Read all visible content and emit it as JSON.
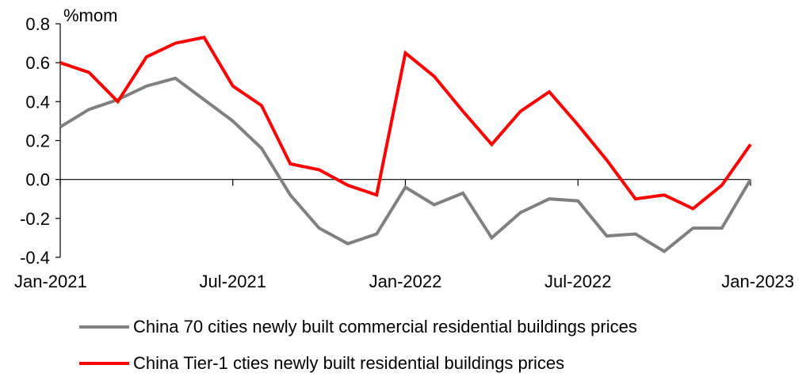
{
  "chart_data": {
    "type": "line",
    "ylabel": "%mom",
    "ylim": [
      -0.4,
      0.8
    ],
    "yticks": [
      0.8,
      0.6,
      0.4,
      0.2,
      0.0,
      -0.2,
      -0.4
    ],
    "ytick_labels": [
      "0.8",
      "0.6",
      "0.4",
      "0.2",
      "0.0",
      "-0.2",
      "-0.4"
    ],
    "x": [
      "Jan-2021",
      "Feb-2021",
      "Mar-2021",
      "Apr-2021",
      "May-2021",
      "Jun-2021",
      "Jul-2021",
      "Aug-2021",
      "Sep-2021",
      "Oct-2021",
      "Nov-2021",
      "Dec-2021",
      "Jan-2022",
      "Feb-2022",
      "Mar-2022",
      "Apr-2022",
      "May-2022",
      "Jun-2022",
      "Jul-2022",
      "Aug-2022",
      "Sep-2022",
      "Oct-2022",
      "Nov-2022",
      "Dec-2022",
      "Jan-2023"
    ],
    "xtick_labels": [
      {
        "index": 0,
        "label": "Jan-2021"
      },
      {
        "index": 6,
        "label": "Jul-2021"
      },
      {
        "index": 12,
        "label": "Jan-2022"
      },
      {
        "index": 18,
        "label": "Jul-2022"
      },
      {
        "index": 24,
        "label": "Jan-2023"
      }
    ],
    "legend_position": "bottom",
    "series": [
      {
        "name": "China 70 cities newly built commercial residential buildings prices",
        "color": "#808080",
        "values": [
          0.27,
          0.36,
          0.41,
          0.48,
          0.52,
          0.41,
          0.3,
          0.16,
          -0.08,
          -0.25,
          -0.33,
          -0.28,
          -0.04,
          -0.13,
          -0.07,
          -0.3,
          -0.17,
          -0.1,
          -0.11,
          -0.29,
          -0.28,
          -0.37,
          -0.25,
          -0.25,
          0.0
        ]
      },
      {
        "name": "China Tier-1 cties newly built residential buildings prices",
        "color": "#ff0000",
        "values": [
          0.6,
          0.55,
          0.4,
          0.63,
          0.7,
          0.73,
          0.48,
          0.38,
          0.08,
          0.05,
          -0.03,
          -0.08,
          0.65,
          0.53,
          0.35,
          0.18,
          0.35,
          0.45,
          0.28,
          0.1,
          -0.1,
          -0.08,
          -0.15,
          -0.03,
          0.18
        ]
      }
    ]
  }
}
